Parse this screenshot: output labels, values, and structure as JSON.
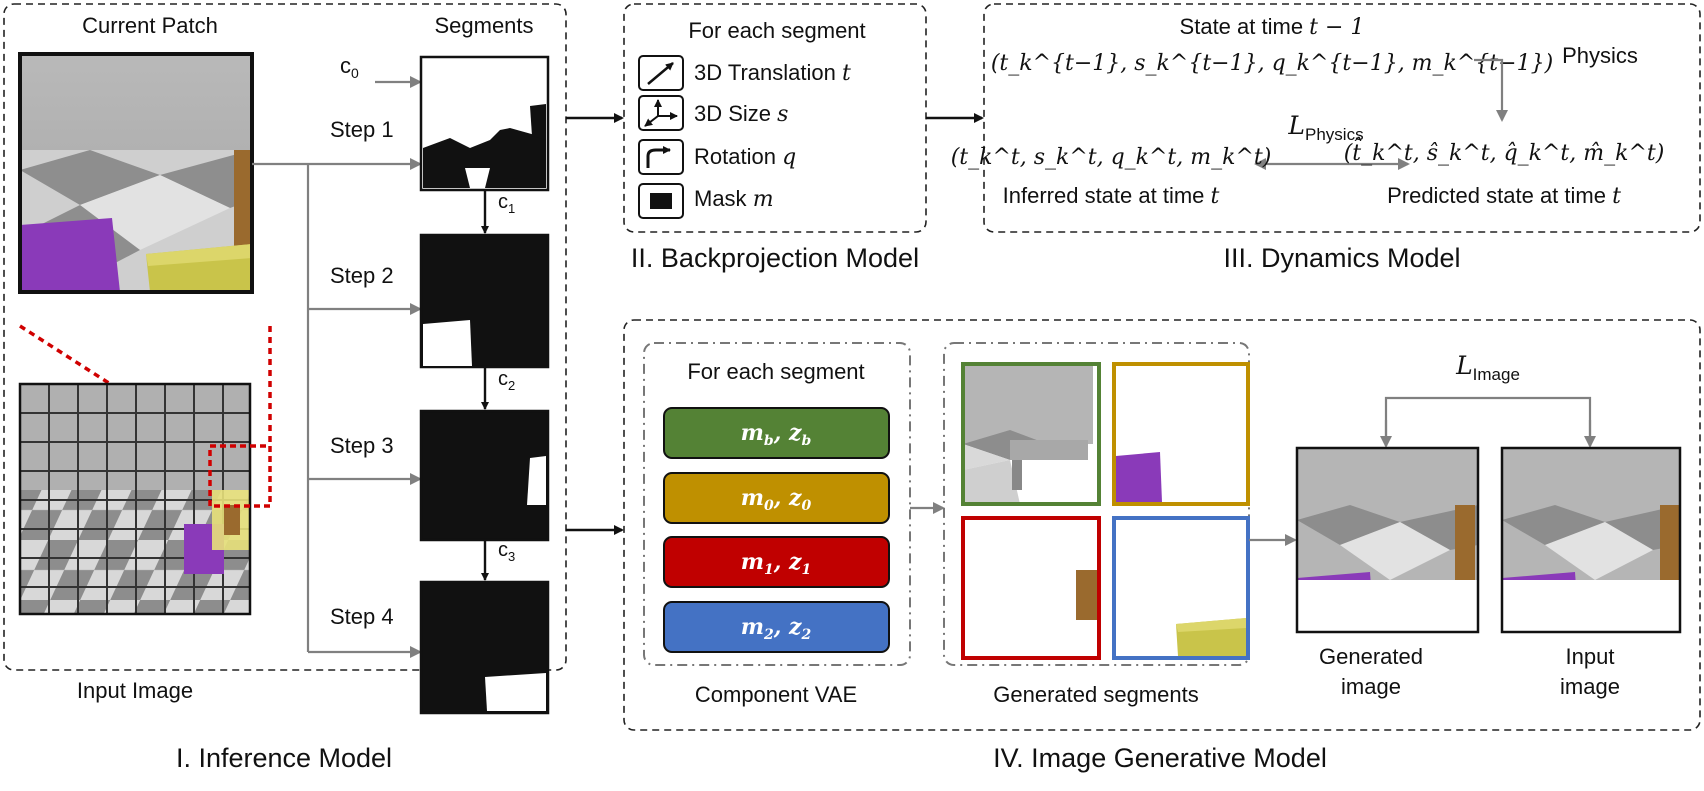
{
  "colors": {
    "green": "#548235",
    "gold": "#bf9000",
    "red": "#c00000",
    "blue": "#4472c4",
    "purple": "#8a3ab9",
    "yellow": "#c9c44a",
    "brown": "#9a6a2e",
    "arrow_gray": "#808080"
  },
  "inference": {
    "current_patch": "Current Patch",
    "segments_label": "Segments",
    "c0": "c",
    "c0_sub": "0",
    "c1": "c",
    "c1_sub": "1",
    "c2": "c",
    "c2_sub": "2",
    "c3": "c",
    "c3_sub": "3",
    "step1": "Step 1",
    "step2": "Step 2",
    "step3": "Step 3",
    "step4": "Step 4",
    "input_image": "Input Image",
    "title": "I. Inference Model"
  },
  "backprojection": {
    "header": "For each segment",
    "translation_text": "3D Translation ",
    "translation_sym": "t",
    "size_text": "3D Size ",
    "size_sym": "s",
    "rotation_text": "Rotation ",
    "rotation_sym": "q",
    "mask_text": "Mask ",
    "mask_sym": "m",
    "title": "II. Backprojection Model"
  },
  "dynamics": {
    "state_prev_label": "State at time ",
    "state_prev_sym": "t − 1",
    "state_prev_tuple": "(t_k^{t−1}, s_k^{t−1}, q_k^{t−1}, m_k^{t−1})",
    "physics": "Physics",
    "loss": "L",
    "loss_sub": "Physics",
    "inferred_tuple": "(t_k^t, s_k^t, q_k^t, m_k^t)",
    "inferred_label": "Inferred state at time ",
    "inferred_sym": "t",
    "predicted_tuple": "(t̂_k^t, ŝ_k^t, q̂_k^t, m̂_k^t)",
    "predicted_label": "Predicted state at time ",
    "predicted_sym": "t",
    "title": "III. Dynamics Model"
  },
  "generative": {
    "vae_header": "For each segment",
    "vae_bars": [
      {
        "m": "m",
        "m_sub": "b",
        "z": "z",
        "z_sub": "b",
        "color": "green"
      },
      {
        "m": "m",
        "m_sub": "0",
        "z": "z",
        "z_sub": "0",
        "color": "gold"
      },
      {
        "m": "m",
        "m_sub": "1",
        "z": "z",
        "z_sub": "1",
        "color": "red"
      },
      {
        "m": "m",
        "m_sub": "2",
        "z": "z",
        "z_sub": "2",
        "color": "blue"
      }
    ],
    "vae_label": "Component VAE",
    "segments_label": "Generated segments",
    "loss": "L",
    "loss_sub": "Image",
    "generated_line1": "Generated",
    "generated_line2": "image",
    "input_line1": "Input",
    "input_line2": "image",
    "title": "IV. Image Generative Model"
  }
}
